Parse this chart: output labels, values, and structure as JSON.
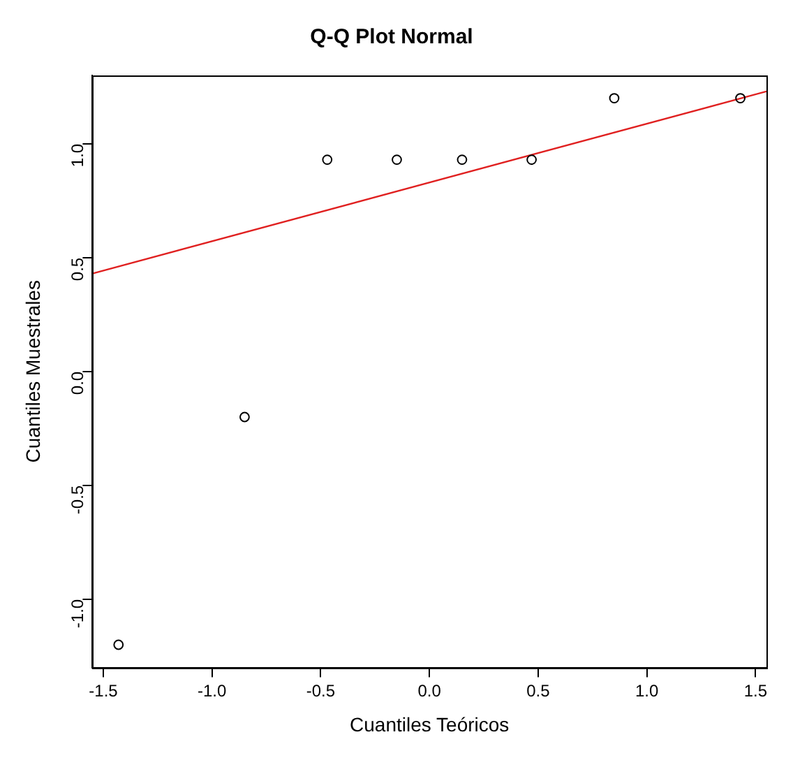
{
  "chart_data": {
    "type": "scatter",
    "title": "Q-Q Plot Normal",
    "xlabel": "Cuantiles Teóricos",
    "ylabel": "Cuantiles Muestrales",
    "xlim": [
      -1.55,
      1.55
    ],
    "ylim": [
      -1.3,
      1.3
    ],
    "xticks": [
      -1.5,
      {
        "value": -1,
        "label": "-1.0"
      },
      -0.5,
      {
        "value": 0,
        "label": "0.0"
      },
      0.5,
      {
        "value": 1,
        "label": "1.0"
      },
      1.5
    ],
    "yticks": [
      {
        "value": -1,
        "label": "-1.0"
      },
      -0.5,
      {
        "value": 0,
        "label": "0.0"
      },
      0.5,
      {
        "value": 1,
        "label": "1.0"
      }
    ],
    "grid": false,
    "legend": false,
    "series": [
      {
        "marker": "circle",
        "color": "#000000",
        "x": [
          -1.43,
          -0.85,
          -0.47,
          -0.15,
          0.15,
          0.47,
          0.85,
          1.43
        ],
        "values": [
          -1.2,
          -0.2,
          0.93,
          0.93,
          0.93,
          0.93,
          1.2,
          1.2
        ]
      },
      {
        "type": "line",
        "marker": "none",
        "color": "#e02020",
        "line_style": "solid",
        "x": [
          -1.55,
          1.55
        ],
        "values": [
          0.43,
          1.23
        ]
      }
    ]
  }
}
